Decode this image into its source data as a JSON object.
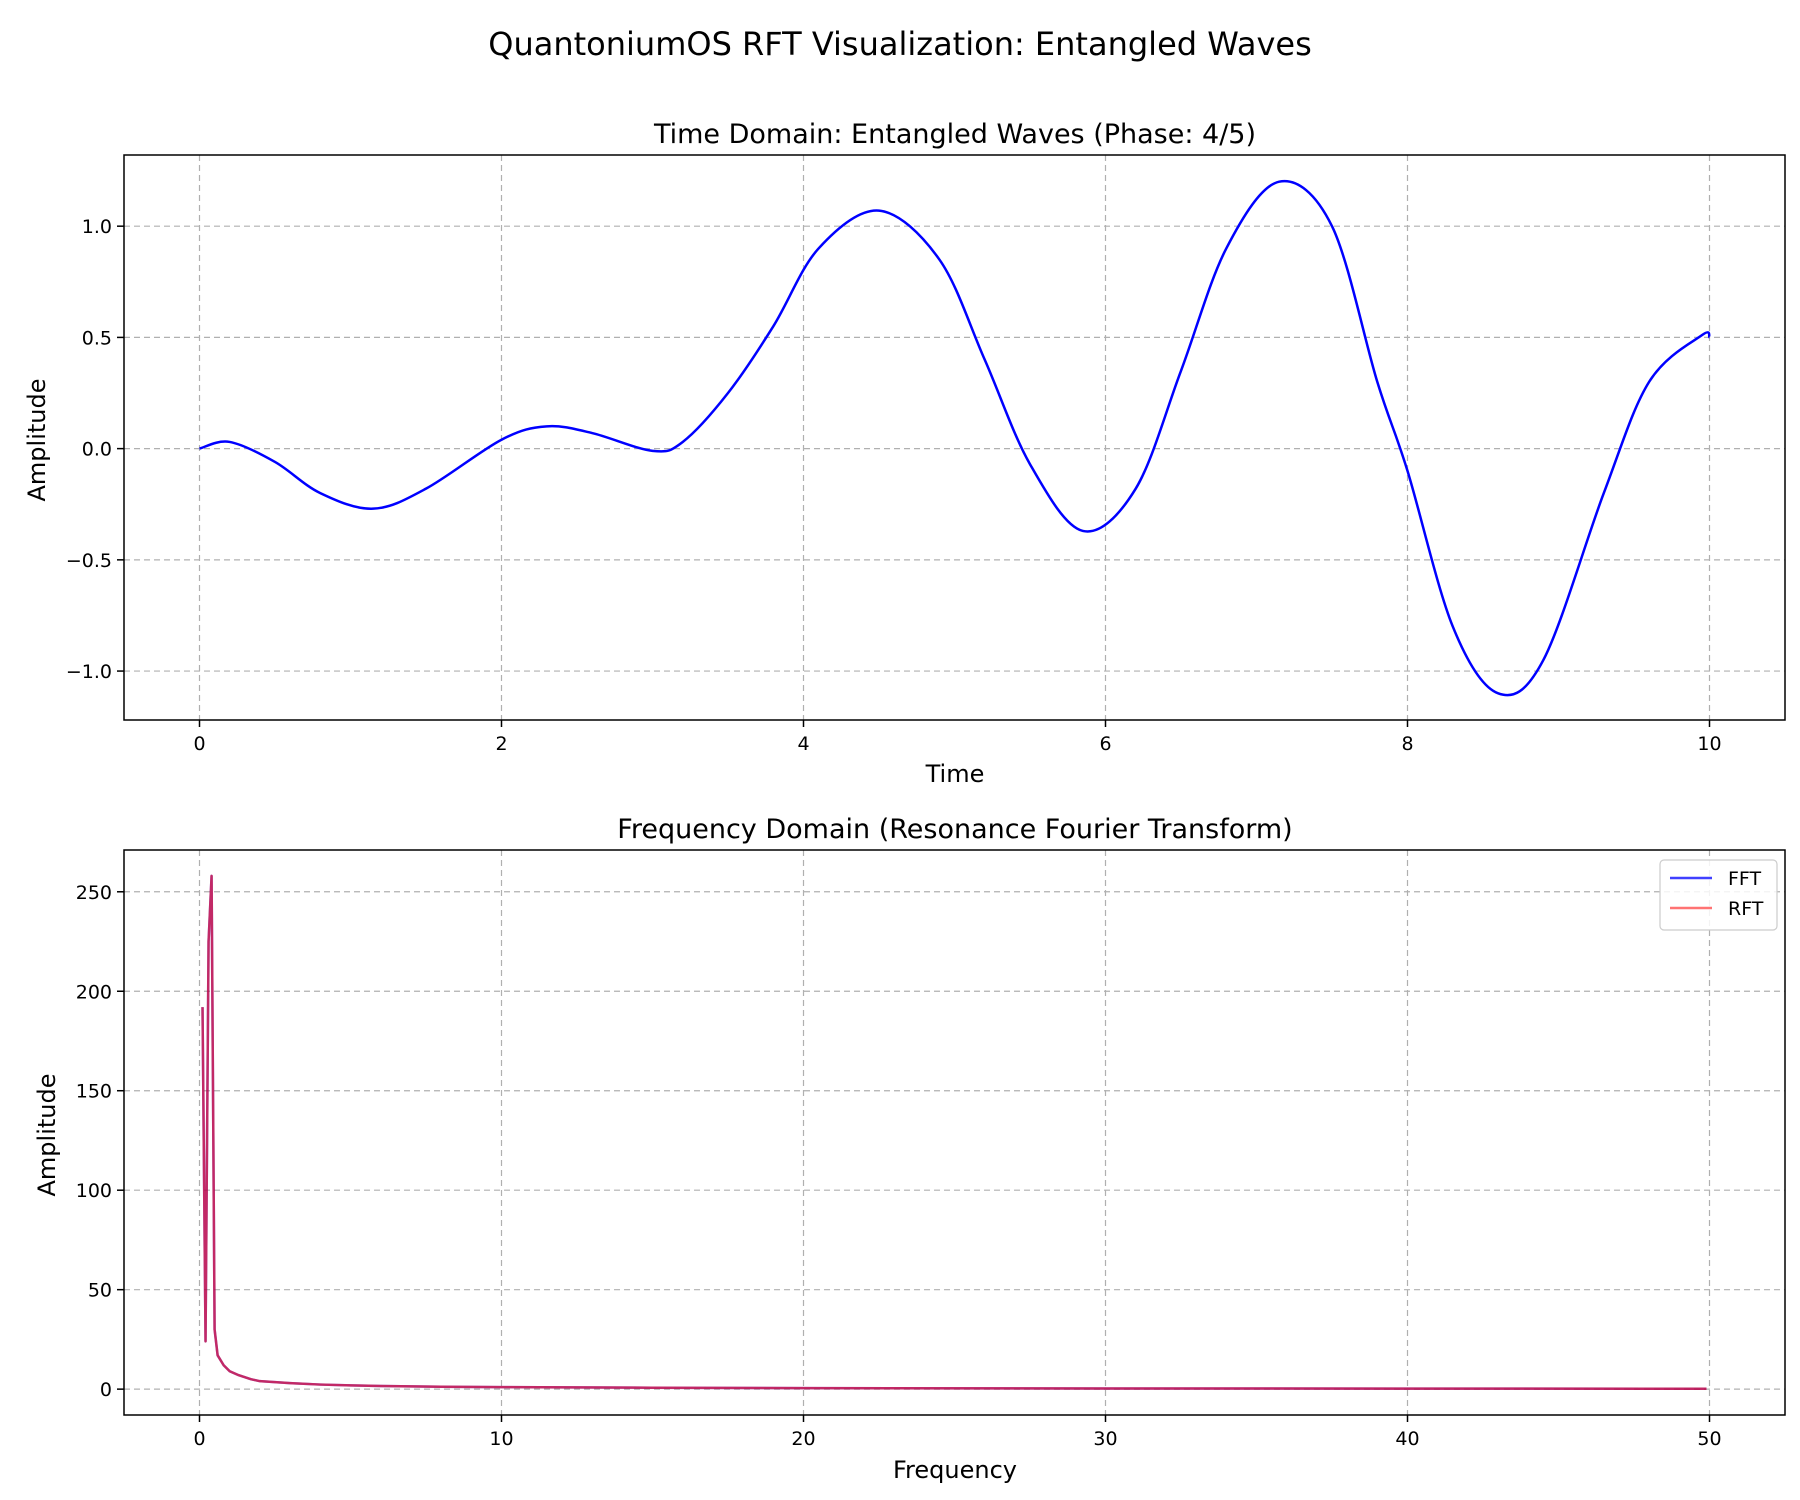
{
  "figure": {
    "suptitle": "QuantoniumOS RFT Visualization: Entangled Waves"
  },
  "chart_data": [
    {
      "type": "line",
      "title": "Time Domain: Entangled Waves (Phase: 4/5)",
      "xlabel": "Time",
      "ylabel": "Amplitude",
      "xlim": [
        -0.5,
        10.5
      ],
      "ylim": [
        -1.22,
        1.32
      ],
      "grid": true,
      "xticks": [
        0,
        2,
        4,
        6,
        8,
        10
      ],
      "xtick_labels": [
        "0",
        "2",
        "4",
        "6",
        "8",
        "10"
      ],
      "yticks": [
        -1.0,
        -0.5,
        0.0,
        0.5,
        1.0
      ],
      "ytick_labels": [
        "−1.0",
        "−0.5",
        "0.0",
        "0.5",
        "1.0"
      ],
      "series": [
        {
          "color": "#0000ff",
          "x": [
            0,
            0.2,
            0.5,
            0.8,
            1.15,
            1.5,
            2.0,
            2.3,
            2.6,
            3.0,
            3.2,
            3.5,
            3.8,
            4.1,
            4.5,
            4.9,
            5.2,
            5.5,
            5.85,
            6.2,
            6.5,
            6.8,
            7.15,
            7.5,
            7.8,
            8.0,
            8.3,
            8.6,
            8.9,
            9.3,
            9.6,
            9.95,
            10.0
          ],
          "y": [
            0,
            0.03,
            -0.06,
            -0.2,
            -0.27,
            -0.18,
            0.04,
            0.1,
            0.07,
            -0.01,
            0.03,
            0.25,
            0.55,
            0.9,
            1.07,
            0.85,
            0.4,
            -0.07,
            -0.37,
            -0.18,
            0.35,
            0.9,
            1.2,
            1.0,
            0.3,
            -0.1,
            -0.8,
            -1.1,
            -0.95,
            -0.2,
            0.3,
            0.51,
            0.5
          ]
        }
      ]
    },
    {
      "type": "line",
      "title": "Frequency Domain (Resonance Fourier Transform)",
      "xlabel": "Frequency",
      "ylabel": "Amplitude",
      "xlim": [
        -2.5,
        52.5
      ],
      "ylim": [
        -13,
        271
      ],
      "grid": true,
      "legend": "top-right",
      "xticks": [
        0,
        10,
        20,
        30,
        40,
        50
      ],
      "xtick_labels": [
        "0",
        "10",
        "20",
        "30",
        "40",
        "50"
      ],
      "yticks": [
        0,
        50,
        100,
        150,
        200,
        250
      ],
      "ytick_labels": [
        "0",
        "50",
        "100",
        "150",
        "200",
        "250"
      ],
      "series": [
        {
          "name": "FFT",
          "color": "#0000ff",
          "x": [
            0.1,
            0.2,
            0.3,
            0.4,
            0.5,
            0.6,
            0.8,
            1.0,
            1.3,
            1.7,
            2.0,
            3.0,
            4.0,
            5.0,
            6.0,
            8.0,
            10.0,
            15.0,
            20.0,
            30.0,
            40.0,
            49.9
          ],
          "y": [
            192,
            24,
            225,
            258,
            30,
            17,
            12,
            9,
            7,
            5,
            4,
            3,
            2.3,
            1.9,
            1.6,
            1.2,
            1.0,
            0.7,
            0.5,
            0.35,
            0.25,
            0.2
          ]
        },
        {
          "name": "RFT",
          "color": "#ff0000",
          "x": [
            0.1,
            0.2,
            0.3,
            0.4,
            0.5,
            0.6,
            0.8,
            1.0,
            1.3,
            1.7,
            2.0,
            3.0,
            4.0,
            5.0,
            6.0,
            8.0,
            10.0,
            15.0,
            20.0,
            30.0,
            40.0,
            49.9
          ],
          "y": [
            192,
            24,
            225,
            258,
            30,
            17,
            12,
            9,
            7,
            5,
            4,
            3,
            2.3,
            1.9,
            1.6,
            1.2,
            1.0,
            0.7,
            0.5,
            0.35,
            0.25,
            0.2
          ]
        }
      ]
    }
  ]
}
